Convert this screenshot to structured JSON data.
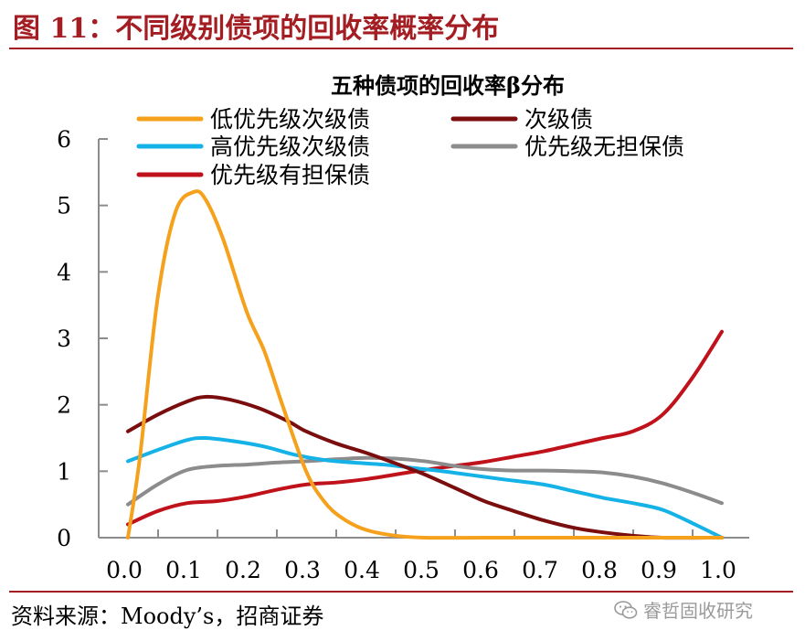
{
  "figure": {
    "title": "图 11：不同级别债项的回收率概率分布",
    "source": "资料来源：Moody’s，招商证券",
    "watermark": "睿哲固收研究",
    "watermark_icon": "wechat-icon",
    "accent_color": "#a31d22"
  },
  "chart_data": {
    "type": "line",
    "title": "五种债项的回收率β分布",
    "xlabel": "",
    "ylabel": "",
    "xlim": [
      0.0,
      1.0
    ],
    "ylim": [
      0,
      6
    ],
    "x_ticks": [
      0.0,
      0.1,
      0.2,
      0.3,
      0.4,
      0.5,
      0.6,
      0.7,
      0.8,
      0.9,
      1.0
    ],
    "x_tick_labels": [
      "0.0",
      "0.1",
      "0.2",
      "0.3",
      "0.4",
      "0.5",
      "0.6",
      "0.7",
      "0.8",
      "0.9",
      "1.0"
    ],
    "y_ticks": [
      0,
      1,
      2,
      3,
      4,
      5,
      6
    ],
    "y_tick_labels": [
      "0",
      "1",
      "2",
      "3",
      "4",
      "5",
      "6"
    ],
    "grid": false,
    "legend_position": "top",
    "series": [
      {
        "name": "低优先级次级债",
        "color": "#f5a11c",
        "points": [
          [
            0.0,
            0.0
          ],
          [
            0.02,
            1.2
          ],
          [
            0.05,
            3.6
          ],
          [
            0.08,
            4.9
          ],
          [
            0.11,
            5.2
          ],
          [
            0.13,
            5.1
          ],
          [
            0.16,
            4.5
          ],
          [
            0.2,
            3.4
          ],
          [
            0.23,
            2.8
          ],
          [
            0.26,
            2.0
          ],
          [
            0.3,
            1.0
          ],
          [
            0.33,
            0.55
          ],
          [
            0.36,
            0.3
          ],
          [
            0.4,
            0.12
          ],
          [
            0.45,
            0.03
          ],
          [
            0.5,
            0.0
          ],
          [
            0.6,
            0.0
          ],
          [
            0.7,
            0.0
          ],
          [
            0.8,
            0.0
          ],
          [
            0.9,
            0.0
          ],
          [
            1.0,
            0.0
          ]
        ]
      },
      {
        "name": "次级债",
        "color": "#7a0e0e",
        "points": [
          [
            0.0,
            1.6
          ],
          [
            0.05,
            1.85
          ],
          [
            0.1,
            2.05
          ],
          [
            0.13,
            2.12
          ],
          [
            0.17,
            2.08
          ],
          [
            0.22,
            1.95
          ],
          [
            0.27,
            1.75
          ],
          [
            0.3,
            1.6
          ],
          [
            0.35,
            1.42
          ],
          [
            0.4,
            1.28
          ],
          [
            0.45,
            1.12
          ],
          [
            0.5,
            0.95
          ],
          [
            0.55,
            0.75
          ],
          [
            0.6,
            0.55
          ],
          [
            0.65,
            0.4
          ],
          [
            0.7,
            0.26
          ],
          [
            0.75,
            0.15
          ],
          [
            0.8,
            0.08
          ],
          [
            0.85,
            0.03
          ],
          [
            0.9,
            0.0
          ],
          [
            1.0,
            0.0
          ]
        ]
      },
      {
        "name": "高优先级次级债",
        "color": "#15b2e8",
        "points": [
          [
            0.0,
            1.15
          ],
          [
            0.05,
            1.32
          ],
          [
            0.1,
            1.47
          ],
          [
            0.13,
            1.5
          ],
          [
            0.18,
            1.45
          ],
          [
            0.23,
            1.37
          ],
          [
            0.28,
            1.25
          ],
          [
            0.33,
            1.17
          ],
          [
            0.38,
            1.13
          ],
          [
            0.43,
            1.1
          ],
          [
            0.48,
            1.05
          ],
          [
            0.53,
            1.0
          ],
          [
            0.58,
            0.94
          ],
          [
            0.63,
            0.88
          ],
          [
            0.7,
            0.8
          ],
          [
            0.75,
            0.7
          ],
          [
            0.8,
            0.6
          ],
          [
            0.85,
            0.52
          ],
          [
            0.9,
            0.42
          ],
          [
            0.95,
            0.22
          ],
          [
            1.0,
            0.0
          ]
        ]
      },
      {
        "name": "优先级无担保债",
        "color": "#8c8c8c",
        "points": [
          [
            0.0,
            0.5
          ],
          [
            0.05,
            0.8
          ],
          [
            0.1,
            1.02
          ],
          [
            0.15,
            1.08
          ],
          [
            0.2,
            1.1
          ],
          [
            0.25,
            1.13
          ],
          [
            0.3,
            1.15
          ],
          [
            0.35,
            1.18
          ],
          [
            0.4,
            1.2
          ],
          [
            0.45,
            1.19
          ],
          [
            0.5,
            1.15
          ],
          [
            0.55,
            1.08
          ],
          [
            0.6,
            1.03
          ],
          [
            0.65,
            1.01
          ],
          [
            0.7,
            1.01
          ],
          [
            0.75,
            1.0
          ],
          [
            0.8,
            0.98
          ],
          [
            0.85,
            0.92
          ],
          [
            0.9,
            0.82
          ],
          [
            0.95,
            0.68
          ],
          [
            1.0,
            0.52
          ]
        ]
      },
      {
        "name": "优先级有担保债",
        "color": "#c0121b",
        "points": [
          [
            0.0,
            0.2
          ],
          [
            0.05,
            0.4
          ],
          [
            0.1,
            0.52
          ],
          [
            0.15,
            0.55
          ],
          [
            0.2,
            0.62
          ],
          [
            0.25,
            0.72
          ],
          [
            0.3,
            0.8
          ],
          [
            0.35,
            0.83
          ],
          [
            0.4,
            0.88
          ],
          [
            0.45,
            0.95
          ],
          [
            0.5,
            1.02
          ],
          [
            0.55,
            1.08
          ],
          [
            0.6,
            1.14
          ],
          [
            0.65,
            1.22
          ],
          [
            0.7,
            1.3
          ],
          [
            0.75,
            1.4
          ],
          [
            0.8,
            1.5
          ],
          [
            0.85,
            1.6
          ],
          [
            0.9,
            1.85
          ],
          [
            0.95,
            2.4
          ],
          [
            1.0,
            3.1
          ]
        ]
      }
    ]
  }
}
